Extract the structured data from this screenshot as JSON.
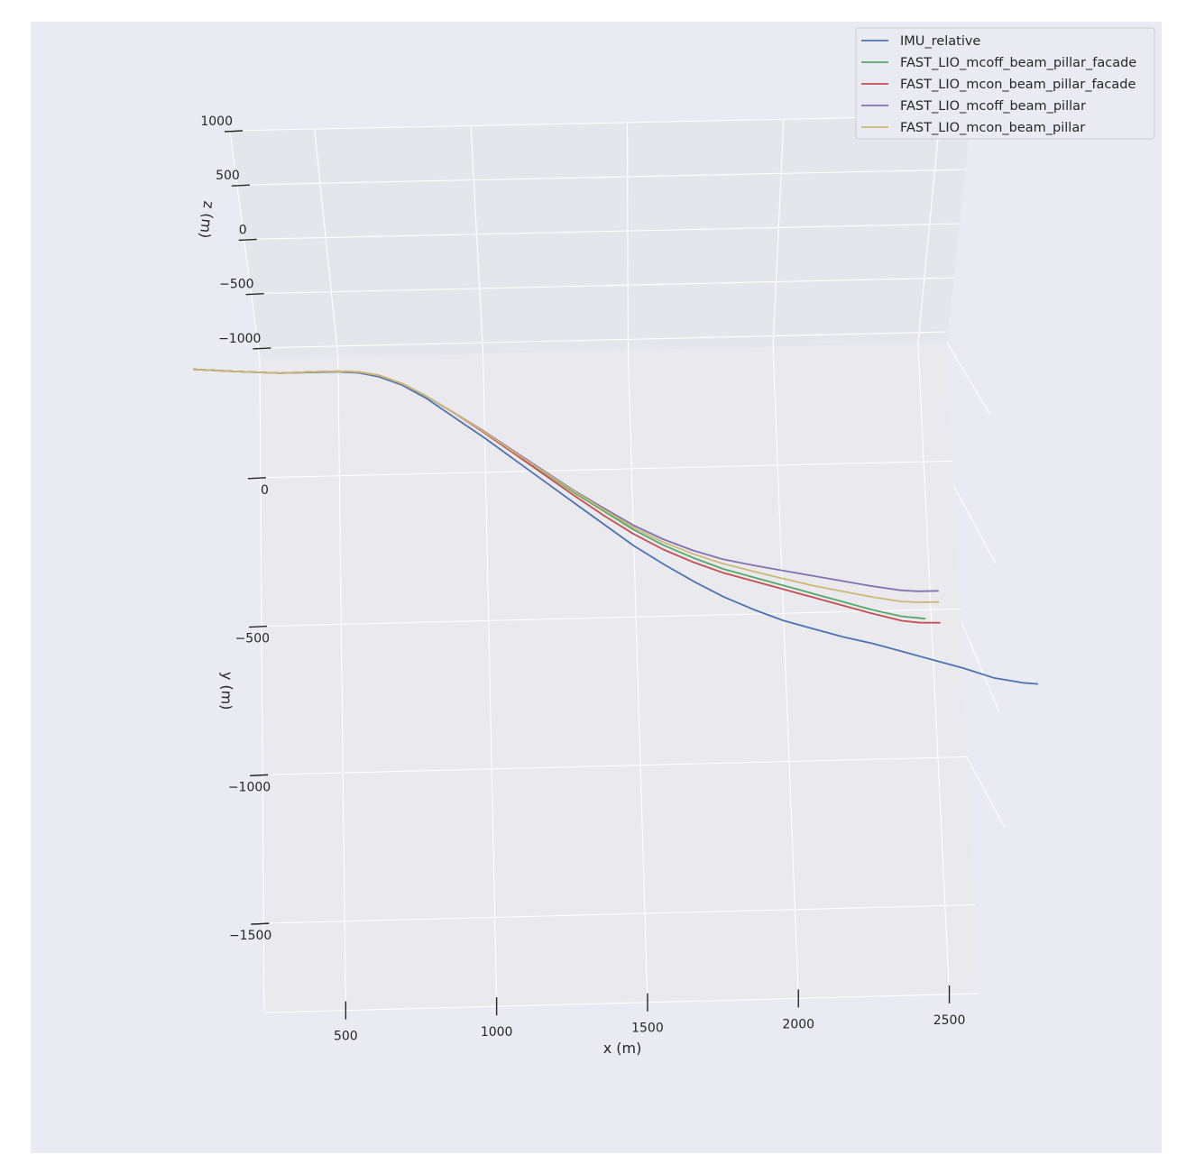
{
  "colors": {
    "background": "#EAEAF2",
    "pane_back": "#E5E5EC",
    "pane_floor": "#E9E9EE",
    "grid": "#FFFFFF",
    "tick": "#262626"
  },
  "chart_data": {
    "type": "line",
    "projection": "3d",
    "title": "",
    "xlabel": "x (m)",
    "ylabel": "y (m)",
    "zlabel": "z (m)",
    "xlim": [
      230,
      2600
    ],
    "ylim": [
      -1800,
      400
    ],
    "zlim": [
      -1100,
      1000
    ],
    "grid": true,
    "legend_position": "top-right",
    "x_ticks": [
      {
        "value": 500,
        "label": "500"
      },
      {
        "value": 1000,
        "label": "1000"
      },
      {
        "value": 1500,
        "label": "1500"
      },
      {
        "value": 2000,
        "label": "2000"
      },
      {
        "value": 2500,
        "label": "2500"
      }
    ],
    "y_ticks": [
      {
        "value": 0,
        "label": "0"
      },
      {
        "value": -500,
        "label": "−500"
      },
      {
        "value": -1000,
        "label": "−1000"
      },
      {
        "value": -1500,
        "label": "−1500"
      }
    ],
    "z_ticks": [
      {
        "value": 1000,
        "label": "1000"
      },
      {
        "value": 500,
        "label": "500"
      },
      {
        "value": 0,
        "label": "0"
      },
      {
        "value": -500,
        "label": "−500"
      },
      {
        "value": -1000,
        "label": "−1000"
      }
    ],
    "series": [
      {
        "name": "IMU_relative",
        "color": "#4C72B0",
        "x": [
          0,
          140,
          300,
          420,
          500,
          570,
          640,
          720,
          800,
          900,
          1000,
          1100,
          1200,
          1300,
          1400,
          1500,
          1600,
          1700,
          1800,
          1900,
          2000,
          2100,
          2200,
          2300,
          2400,
          2500,
          2600,
          2700,
          2800,
          2850
        ],
        "y": [
          370,
          360,
          350,
          350,
          350,
          345,
          330,
          300,
          255,
          185,
          115,
          40,
          -35,
          -110,
          -185,
          -260,
          -325,
          -385,
          -440,
          -485,
          -525,
          -555,
          -585,
          -610,
          -640,
          -670,
          -700,
          -735,
          -755,
          -760
        ],
        "z": [
          0,
          0,
          0,
          0,
          0,
          0,
          0,
          0,
          0,
          0,
          0,
          0,
          0,
          0,
          0,
          0,
          0,
          0,
          0,
          0,
          0,
          0,
          0,
          0,
          0,
          0,
          0,
          0,
          0,
          0
        ]
      },
      {
        "name": "FAST_LIO_mcoff_beam_pillar_facade",
        "color": "#55A868",
        "x": [
          0,
          140,
          300,
          420,
          500,
          570,
          640,
          720,
          800,
          900,
          1000,
          1100,
          1200,
          1300,
          1400,
          1500,
          1600,
          1700,
          1800,
          1900,
          2000,
          2100,
          2200,
          2300,
          2400,
          2480
        ],
        "y": [
          370,
          360,
          350,
          352,
          352,
          348,
          335,
          305,
          262,
          200,
          135,
          65,
          -5,
          -75,
          -140,
          -205,
          -260,
          -305,
          -345,
          -375,
          -405,
          -435,
          -465,
          -495,
          -520,
          -530
        ],
        "z": [
          0,
          0,
          0,
          0,
          0,
          0,
          0,
          0,
          0,
          0,
          0,
          0,
          0,
          0,
          0,
          0,
          0,
          0,
          0,
          0,
          0,
          0,
          0,
          0,
          0,
          0
        ]
      },
      {
        "name": "FAST_LIO_mcon_beam_pillar_facade",
        "color": "#C44E52",
        "x": [
          0,
          140,
          300,
          420,
          500,
          570,
          640,
          720,
          800,
          900,
          1000,
          1100,
          1200,
          1300,
          1400,
          1500,
          1600,
          1700,
          1800,
          1900,
          2000,
          2100,
          2200,
          2300,
          2400,
          2460,
          2530
        ],
        "y": [
          370,
          360,
          350,
          352,
          352,
          348,
          335,
          305,
          262,
          200,
          132,
          60,
          -12,
          -85,
          -155,
          -220,
          -275,
          -320,
          -358,
          -388,
          -418,
          -448,
          -478,
          -508,
          -535,
          -543,
          -545
        ],
        "z": [
          0,
          0,
          0,
          0,
          0,
          0,
          0,
          0,
          0,
          0,
          0,
          0,
          0,
          0,
          0,
          0,
          0,
          0,
          0,
          0,
          0,
          0,
          0,
          0,
          0,
          0,
          0
        ]
      },
      {
        "name": "FAST_LIO_mcoff_beam_pillar",
        "color": "#8172B2",
        "x": [
          0,
          140,
          300,
          420,
          500,
          570,
          640,
          720,
          800,
          900,
          1000,
          1100,
          1200,
          1300,
          1400,
          1500,
          1600,
          1700,
          1800,
          1900,
          2000,
          2100,
          2200,
          2300,
          2400,
          2460,
          2530
        ],
        "y": [
          370,
          360,
          350,
          352,
          352,
          348,
          335,
          305,
          262,
          200,
          137,
          68,
          0,
          -68,
          -130,
          -190,
          -240,
          -280,
          -312,
          -335,
          -355,
          -375,
          -395,
          -415,
          -432,
          -437,
          -437
        ],
        "z": [
          0,
          0,
          0,
          0,
          0,
          0,
          0,
          0,
          0,
          0,
          0,
          0,
          0,
          0,
          0,
          0,
          0,
          0,
          0,
          0,
          0,
          0,
          0,
          0,
          0,
          0,
          0
        ]
      },
      {
        "name": "FAST_LIO_mcon_beam_pillar",
        "color": "#CCB974",
        "x": [
          0,
          140,
          300,
          420,
          500,
          570,
          640,
          720,
          800,
          900,
          1000,
          1100,
          1200,
          1300,
          1400,
          1500,
          1600,
          1700,
          1800,
          1900,
          2000,
          2100,
          2200,
          2300,
          2400,
          2460,
          2530
        ],
        "y": [
          370,
          360,
          350,
          352,
          352,
          348,
          335,
          305,
          262,
          200,
          135,
          65,
          -3,
          -70,
          -135,
          -197,
          -250,
          -292,
          -327,
          -355,
          -382,
          -408,
          -430,
          -452,
          -470,
          -474,
          -475
        ],
        "z": [
          0,
          0,
          0,
          0,
          0,
          0,
          0,
          0,
          0,
          0,
          0,
          0,
          0,
          0,
          0,
          0,
          0,
          0,
          0,
          0,
          0,
          0,
          0,
          0,
          0,
          0,
          0
        ]
      }
    ]
  }
}
